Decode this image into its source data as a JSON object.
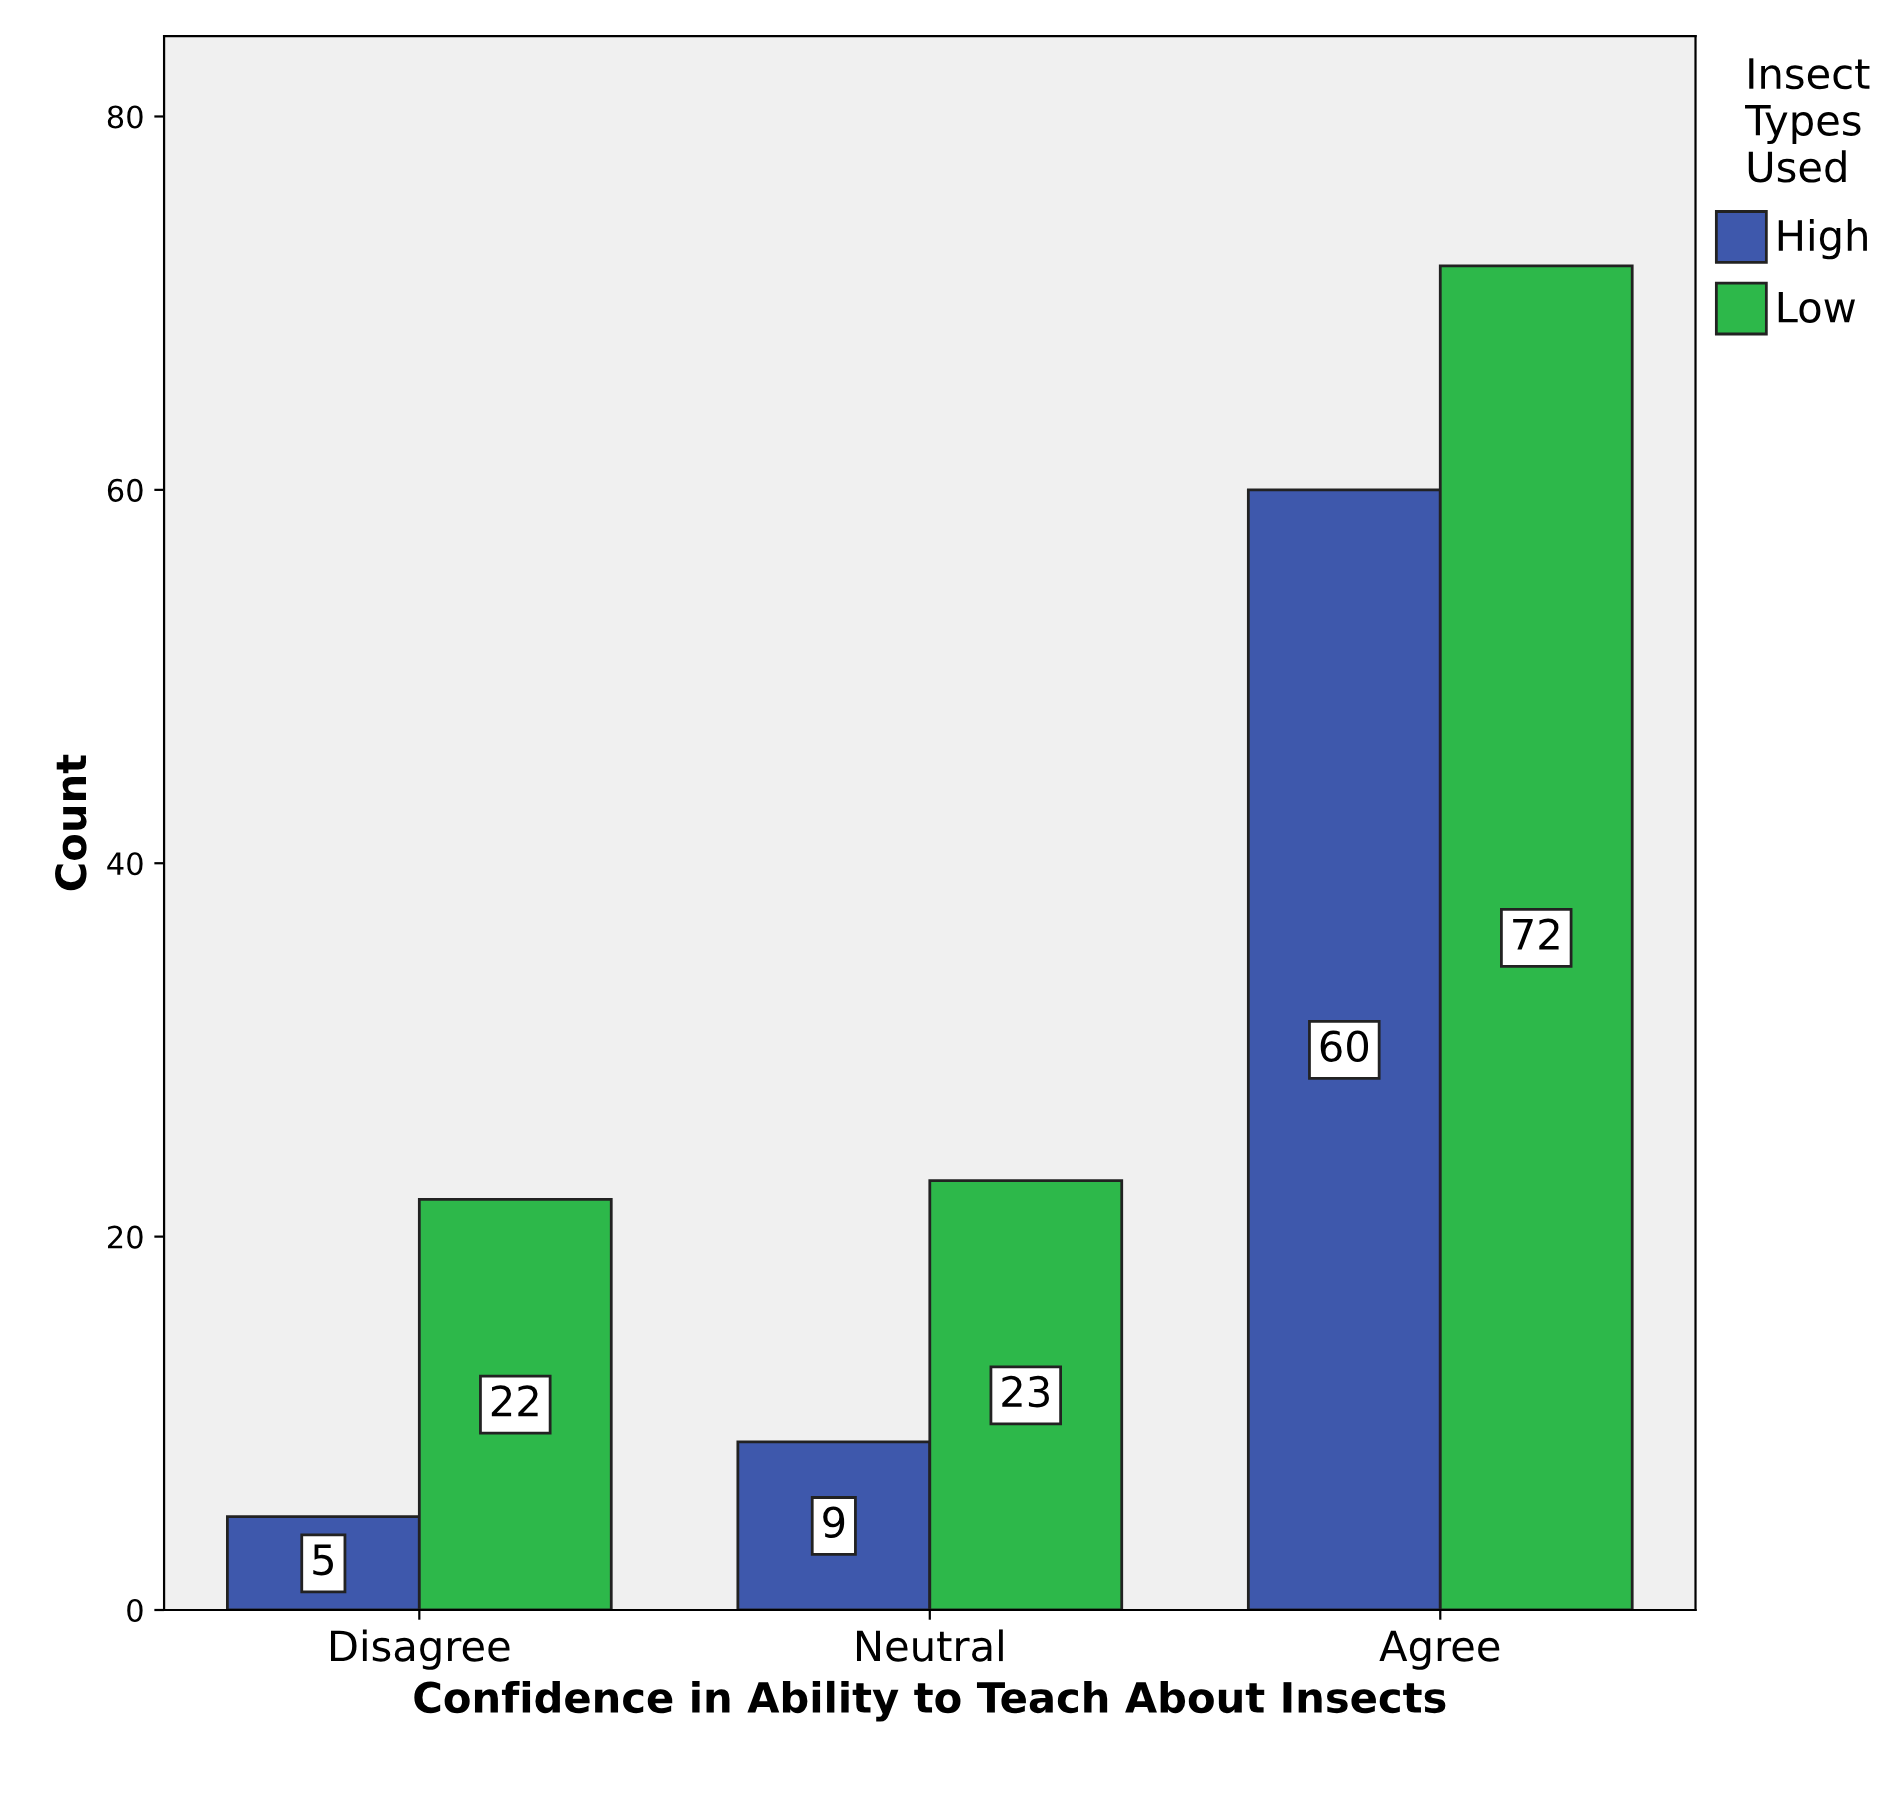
{
  "chart_data": {
    "type": "bar",
    "xlabel": "Confidence in Ability to Teach About Insects",
    "ylabel": "Count",
    "legend_title": "Insect\nTypes\nUsed",
    "categories": [
      "Disagree",
      "Neutral",
      "Agree"
    ],
    "series": [
      {
        "name": "High",
        "color": "#3e58ac",
        "values": [
          5,
          9,
          60
        ]
      },
      {
        "name": "Low",
        "color": "#2db84a",
        "values": [
          22,
          23,
          72
        ]
      }
    ],
    "ylim": [
      0,
      84.3
    ],
    "yticks": [
      0,
      20,
      40,
      60,
      80
    ],
    "data_labels": true,
    "legend": "top right",
    "grid": false
  }
}
